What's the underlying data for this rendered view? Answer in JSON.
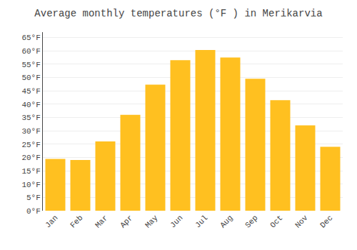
{
  "chart_data": {
    "type": "bar",
    "title": "Average monthly temperatures (°F ) in Merikarvia",
    "categories": [
      "Jan",
      "Feb",
      "Mar",
      "Apr",
      "May",
      "Jun",
      "Jul",
      "Aug",
      "Sep",
      "Oct",
      "Nov",
      "Dec"
    ],
    "values": [
      19.4,
      19.0,
      26.0,
      36.0,
      47.3,
      56.5,
      60.3,
      57.5,
      49.5,
      41.5,
      32.0,
      24.0
    ],
    "color": "#FFC020",
    "ylim": [
      0,
      67
    ],
    "yticks": [
      {
        "value": 0,
        "label": "0°F"
      },
      {
        "value": 5,
        "label": "5°F"
      },
      {
        "value": 10,
        "label": "10°F"
      },
      {
        "value": 15,
        "label": "15°F"
      },
      {
        "value": 20,
        "label": "20°F"
      },
      {
        "value": 25,
        "label": "25°F"
      },
      {
        "value": 30,
        "label": "30°F"
      },
      {
        "value": 35,
        "label": "35°F"
      },
      {
        "value": 40,
        "label": "40°F"
      },
      {
        "value": 45,
        "label": "45°F"
      },
      {
        "value": 50,
        "label": "50°F"
      },
      {
        "value": 55,
        "label": "55°F"
      },
      {
        "value": 60,
        "label": "60°F"
      },
      {
        "value": 65,
        "label": "65°F"
      }
    ],
    "grid": true
  }
}
